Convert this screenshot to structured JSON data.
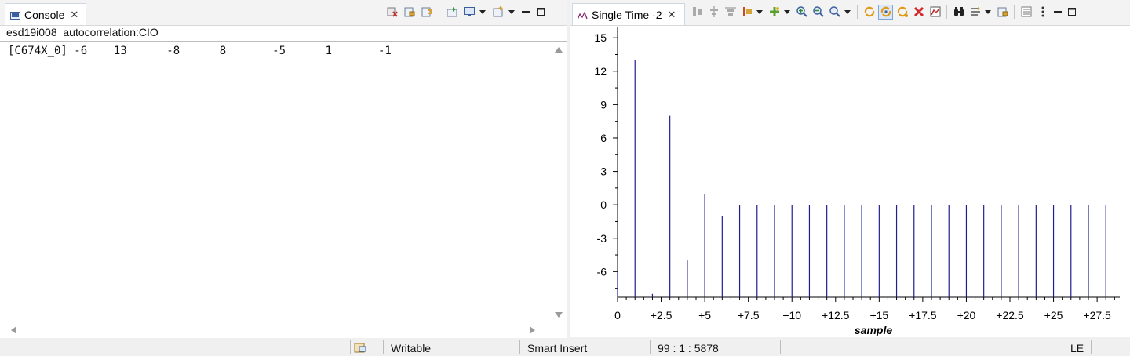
{
  "console": {
    "tab_label": "Console",
    "title": "esd19i008_autocorrelation:CIO",
    "output_line": "[C674X_0] -6    13      -8      8       -5      1       -1"
  },
  "graph": {
    "tab_label": "Single Time -2"
  },
  "status": {
    "writable": "Writable",
    "insert_mode": "Smart Insert",
    "position": "99 : 1 : 5878",
    "endian": "LE"
  },
  "colors": {
    "stem": "#1f1f8f",
    "axis": "#000000",
    "accent": "#7ea6d8"
  },
  "chart_data": {
    "type": "bar",
    "style": "stem",
    "x": [
      0,
      1,
      2,
      3,
      4,
      5,
      6,
      7,
      8,
      9,
      10,
      11,
      12,
      13,
      14,
      15,
      16,
      17,
      18,
      19,
      20,
      21,
      22,
      23,
      24,
      25,
      26,
      27,
      28
    ],
    "values": [
      -6,
      13,
      -8,
      8,
      -5,
      1,
      -1,
      0,
      0,
      0,
      0,
      0,
      0,
      0,
      0,
      0,
      0,
      0,
      0,
      0,
      0,
      0,
      0,
      0,
      0,
      0,
      0,
      0,
      0
    ],
    "xlabel": "sample",
    "ylabel": "",
    "xlim": [
      0,
      28.8
    ],
    "ylim": [
      -8.3,
      16
    ],
    "x_ticks": [
      0,
      2.5,
      5,
      7.5,
      10,
      12.5,
      15,
      17.5,
      20,
      22.5,
      25,
      27.5
    ],
    "x_tick_labels": [
      "0",
      "+2.5",
      "+5",
      "+7.5",
      "+10",
      "+12.5",
      "+15",
      "+17.5",
      "+20",
      "+22.5",
      "+25",
      "+27.5"
    ],
    "y_ticks": [
      -6,
      -3,
      0,
      3,
      6,
      9,
      12,
      15
    ],
    "y_tick_labels": [
      "-6",
      "-3",
      "0",
      "3",
      "6",
      "9",
      "12",
      "15"
    ],
    "grid": false
  }
}
